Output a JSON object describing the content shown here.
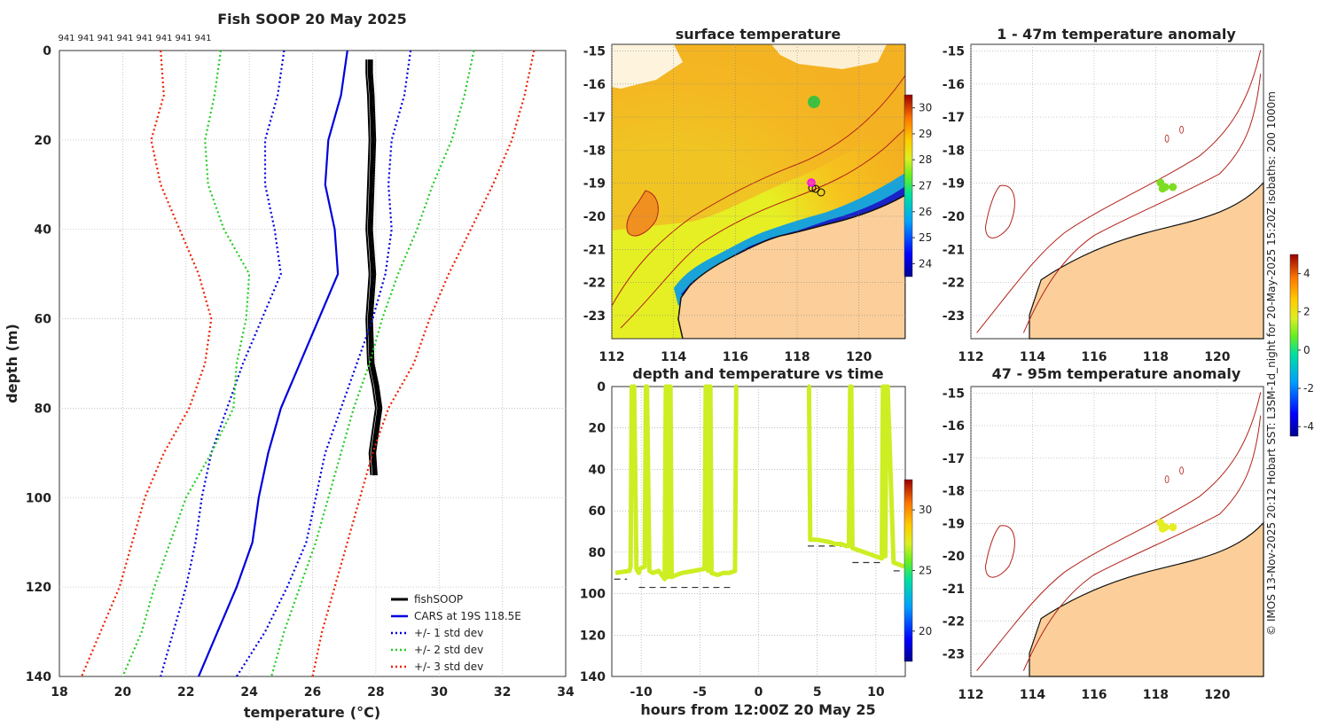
{
  "chart_data": [
    {
      "type": "line",
      "title": "Fish SOOP 20 May 2025",
      "xlabel": "temperature",
      "xlabel_unit": "(°C)",
      "ylabel": "depth (m)",
      "xlim": [
        18,
        34
      ],
      "ylim": [
        140,
        0
      ],
      "x_ticks": [
        "18",
        "20",
        "22",
        "24",
        "26",
        "28",
        "30",
        "32",
        "34"
      ],
      "y_ticks": [
        "0",
        "20",
        "40",
        "60",
        "80",
        "100",
        "120",
        "140"
      ],
      "top_annotations": [
        "941",
        "941",
        "941",
        "941",
        "941",
        "941",
        "941",
        "941"
      ],
      "legend": [
        "fishSOOP",
        "CARS at 19S 118.5E",
        "+/- 1 std dev",
        "+/- 2 std dev",
        "+/- 3 std dev"
      ],
      "series": [
        {
          "name": "fishSOOP",
          "color": "#000000",
          "depth": [
            2,
            5,
            10,
            20,
            30,
            40,
            50,
            60,
            70,
            75,
            80,
            85,
            90,
            95
          ],
          "temp": [
            27.8,
            27.8,
            27.85,
            27.9,
            27.85,
            27.8,
            27.9,
            27.8,
            27.85,
            28.0,
            28.1,
            28.0,
            27.9,
            27.95
          ]
        },
        {
          "name": "CARS at 19S 118.5E",
          "color": "#0000dd",
          "depth": [
            0,
            10,
            20,
            30,
            40,
            50,
            60,
            70,
            80,
            90,
            100,
            110,
            120,
            130,
            140
          ],
          "temp": [
            27.1,
            26.9,
            26.5,
            26.4,
            26.7,
            26.8,
            26.2,
            25.6,
            25.0,
            24.6,
            24.3,
            24.1,
            23.6,
            23.0,
            22.4
          ]
        },
        {
          "name": "-1 std",
          "color": "#0000dd",
          "dash": true,
          "depth": [
            0,
            10,
            20,
            30,
            40,
            50,
            60,
            70,
            80,
            90,
            100,
            110,
            120,
            130,
            140
          ],
          "temp": [
            25.1,
            24.9,
            24.5,
            24.5,
            24.8,
            25.0,
            24.4,
            23.8,
            23.3,
            22.8,
            22.5,
            22.3,
            22.0,
            21.6,
            21.2
          ]
        },
        {
          "name": "+1 std",
          "color": "#0000dd",
          "dash": true,
          "depth": [
            0,
            10,
            20,
            30,
            40,
            50,
            60,
            70,
            80,
            90,
            100,
            110,
            120,
            130,
            140
          ],
          "temp": [
            29.1,
            28.9,
            28.5,
            28.4,
            28.5,
            28.3,
            27.9,
            27.4,
            26.9,
            26.4,
            26.1,
            25.8,
            25.2,
            24.5,
            23.6
          ]
        },
        {
          "name": "-2 std",
          "color": "#22cc22",
          "dash": true,
          "depth": [
            0,
            10,
            20,
            30,
            40,
            50,
            60,
            70,
            80,
            90,
            100,
            110,
            120,
            130,
            140
          ],
          "temp": [
            23.1,
            22.9,
            22.6,
            22.7,
            23.2,
            24.0,
            23.9,
            23.6,
            23.5,
            22.8,
            22.0,
            21.5,
            21.0,
            20.6,
            20.0
          ]
        },
        {
          "name": "+2 std",
          "color": "#22cc22",
          "dash": true,
          "depth": [
            0,
            10,
            20,
            30,
            40,
            50,
            60,
            70,
            80,
            90,
            100,
            110,
            120,
            130,
            140
          ],
          "temp": [
            31.1,
            30.8,
            30.4,
            29.8,
            29.3,
            28.7,
            28.2,
            27.8,
            27.3,
            26.9,
            26.5,
            26.1,
            25.6,
            25.1,
            24.7
          ]
        },
        {
          "name": "-3 std",
          "color": "#ee2200",
          "dash": true,
          "depth": [
            0,
            10,
            20,
            30,
            40,
            50,
            60,
            70,
            80,
            90,
            100,
            110,
            120,
            130,
            140
          ],
          "temp": [
            21.2,
            21.3,
            20.9,
            21.2,
            21.8,
            22.4,
            22.8,
            22.6,
            22.1,
            21.3,
            20.7,
            20.3,
            19.9,
            19.3,
            18.7
          ]
        },
        {
          "name": "+3 std",
          "color": "#ee2200",
          "dash": true,
          "depth": [
            0,
            10,
            20,
            30,
            40,
            50,
            60,
            70,
            80,
            90,
            100,
            110,
            120,
            130,
            140
          ],
          "temp": [
            33.0,
            32.7,
            32.3,
            31.7,
            31.0,
            30.3,
            29.7,
            29.2,
            28.4,
            27.9,
            27.5,
            27.1,
            26.7,
            26.3,
            26.0
          ]
        }
      ]
    },
    {
      "type": "heatmap",
      "title": "surface temperature",
      "xlim": [
        112,
        121.5
      ],
      "ylim": [
        -23.7,
        -14.8
      ],
      "x_ticks": [
        "112",
        "114",
        "116",
        "118",
        "120"
      ],
      "y_ticks": [
        "-15",
        "-16",
        "-17",
        "-18",
        "-19",
        "-20",
        "-21",
        "-22",
        "-23"
      ],
      "colorbar_ticks": [
        "30",
        "29",
        "28",
        "27",
        "26",
        "25",
        "24"
      ],
      "colorbar_range": [
        23.5,
        30.5
      ]
    },
    {
      "type": "line",
      "title": "depth and temperature vs time",
      "xlabel": "hours from 12:00Z 20 May 25",
      "xlim": [
        -12.5,
        12.5
      ],
      "ylim": [
        140,
        0
      ],
      "x_ticks": [
        "-10",
        "-5",
        "0",
        "5",
        "10"
      ],
      "y_ticks": [
        "0",
        "20",
        "40",
        "60",
        "80",
        "100",
        "120",
        "140"
      ],
      "colorbar_ticks": [
        "30",
        "25",
        "20"
      ],
      "colorbar_range": [
        17.5,
        32.5
      ],
      "series": [
        {
          "name": "profile",
          "color": "#ccee22",
          "time": [
            -12.2,
            -11.0,
            -10.9,
            -10.8,
            -10.6,
            -10.4,
            -10.3,
            -10.2,
            -10.1,
            -9.7,
            -9.6,
            -9.5,
            -9.3,
            -9.0,
            -8.5,
            -8.0,
            -7.9,
            -7.8,
            -7.7,
            -7.6,
            -7.5,
            -7.4,
            -7.0,
            -6.5,
            -5.5,
            -4.6,
            -4.5,
            -4.4,
            -4.3,
            -4.2,
            -4.1,
            -4.0,
            -3.5,
            -3.0,
            -2.5,
            -2.0,
            -1.9,
            -1.8
          ],
          "depth": [
            90,
            89,
            87,
            0,
            0,
            88,
            89,
            90,
            88,
            87,
            0,
            0,
            89,
            90,
            89,
            93,
            0,
            0,
            92,
            0,
            0,
            92,
            91,
            90,
            89,
            88,
            0,
            0,
            89,
            0,
            0,
            90,
            91,
            90,
            90,
            89,
            0,
            0
          ]
        },
        {
          "name": "profile2",
          "color": "#ccee22",
          "time": [
            4.2,
            4.3,
            4.4,
            5.0,
            6.0,
            6.5,
            7.0,
            7.5,
            7.7,
            7.8,
            7.9,
            8.0,
            8.5,
            9.0,
            9.5,
            10.0,
            10.5,
            10.6,
            10.7,
            10.8,
            10.9,
            11.0,
            11.5,
            12.0,
            12.4
          ],
          "depth": [
            0,
            0,
            74,
            74,
            75,
            76,
            76,
            77,
            77,
            0,
            0,
            78,
            79,
            80,
            81,
            82,
            83,
            0,
            0,
            82,
            0,
            0,
            85,
            86,
            87
          ]
        }
      ],
      "bottom_markers": [
        {
          "t0": -12.3,
          "t1": -11.2,
          "depth": 93
        },
        {
          "t0": -10.2,
          "t1": -2.2,
          "depth": 97
        },
        {
          "t0": 4.2,
          "t1": 7.8,
          "depth": 77
        },
        {
          "t0": 8.0,
          "t1": 10.5,
          "depth": 85
        },
        {
          "t0": 11.5,
          "t1": 12.3,
          "depth": 89
        }
      ]
    },
    {
      "type": "heatmap",
      "title": "1 - 47m temperature anomaly",
      "xlim": [
        112,
        121.5
      ],
      "ylim": [
        -23.7,
        -14.8
      ],
      "x_ticks": [
        "112",
        "114",
        "116",
        "118",
        "120"
      ],
      "y_ticks": [
        "-15",
        "-16",
        "-17",
        "-18",
        "-19",
        "-20",
        "-21",
        "-22",
        "-23"
      ]
    },
    {
      "type": "heatmap",
      "title": "47 - 95m temperature anomaly",
      "xlim": [
        112,
        121.5
      ],
      "ylim": [
        -23.7,
        -14.8
      ],
      "x_ticks": [
        "112",
        "114",
        "116",
        "118",
        "120"
      ],
      "y_ticks": [
        "-15",
        "-16",
        "-17",
        "-18",
        "-19",
        "-20",
        "-21",
        "-22",
        "-23"
      ],
      "colorbar_ticks": [
        "4",
        "2",
        "0",
        "-2",
        "-4"
      ],
      "colorbar_range": [
        -4.5,
        5
      ]
    }
  ],
  "credit_text": "© IMOS 13-Nov-2025 20:12 Hobart SST: L3SM-1d_night for 20-May-2025 15:20Z isobaths: 200  1000m",
  "colors": {
    "land": "#fccf9a",
    "ocean_warm": "#f5b41e",
    "ocean_mid": "#e6ef23",
    "isobath": "#b2221a",
    "blue": "#0000dd",
    "green": "#22cc22",
    "red": "#ee2200"
  }
}
